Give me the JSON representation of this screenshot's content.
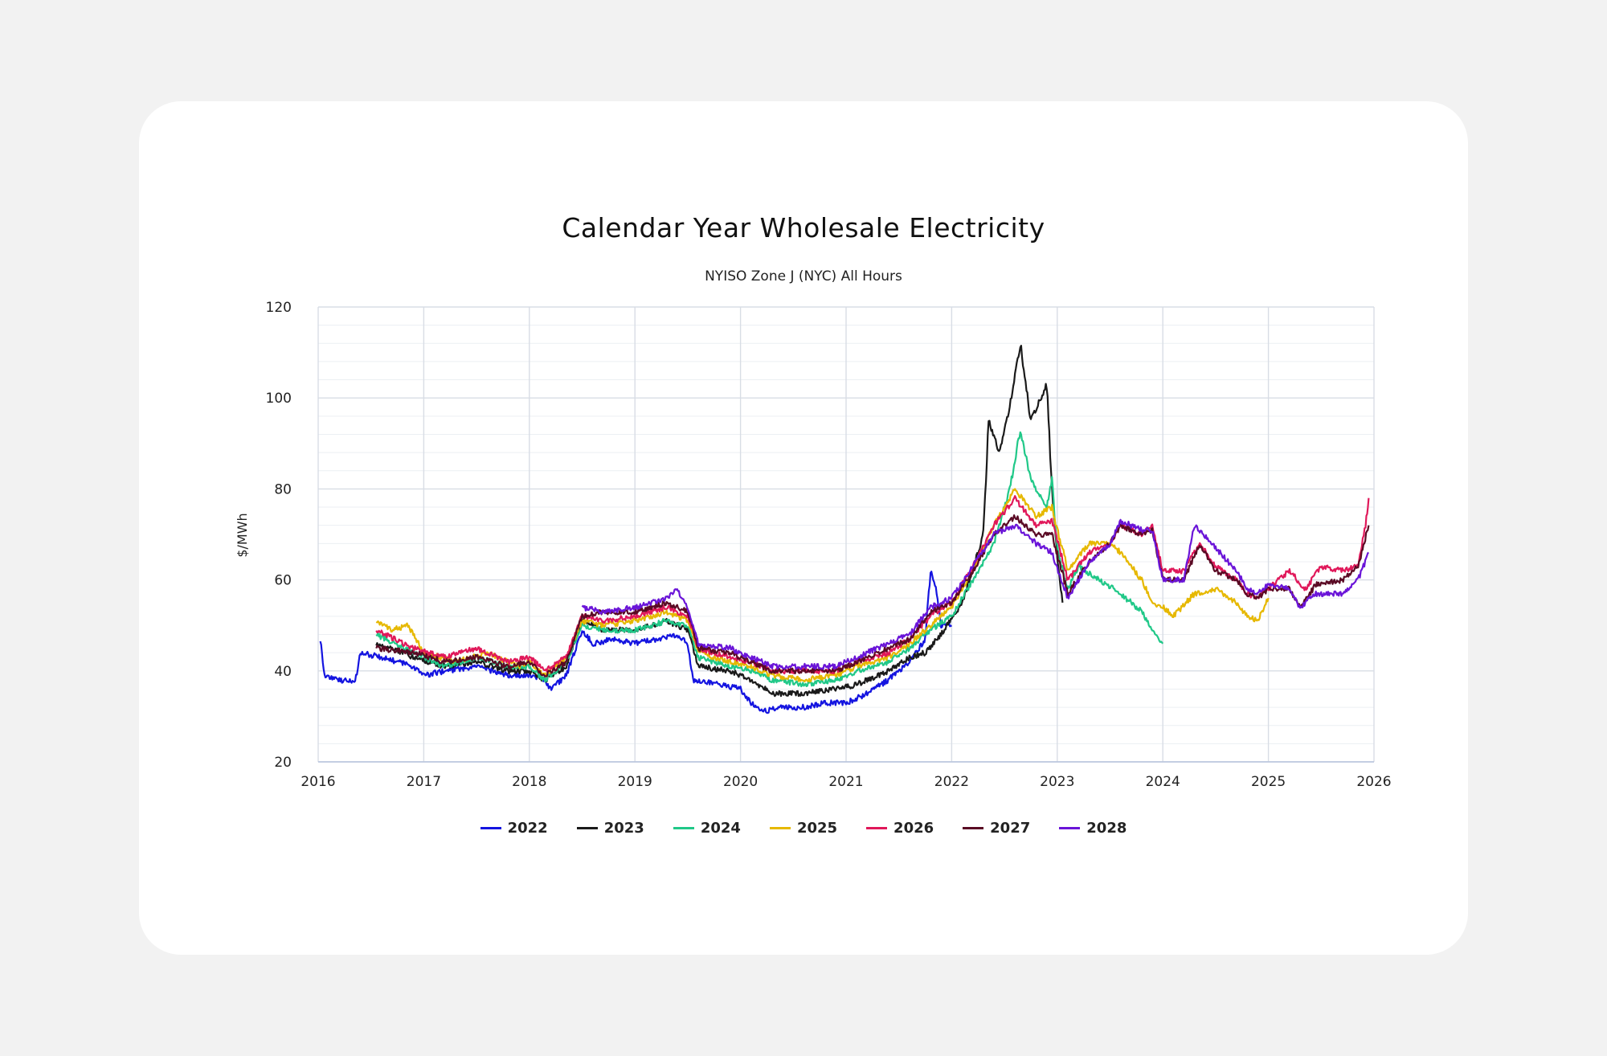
{
  "chart_data": {
    "type": "line",
    "title": "Calendar Year Wholesale Electricity",
    "subtitle": "NYISO Zone J (NYC) All Hours",
    "ylabel": "$/MWh",
    "xlabel": "",
    "xlim": [
      2016,
      2026
    ],
    "ylim": [
      20,
      120
    ],
    "xticks": [
      "2016",
      "2017",
      "2018",
      "2019",
      "2020",
      "2021",
      "2022",
      "2023",
      "2024",
      "2025",
      "2026"
    ],
    "yticks": [
      "20",
      "40",
      "60",
      "80",
      "100",
      "120"
    ],
    "legend_position": "bottom",
    "series": [
      {
        "name": "2022",
        "color": "#1414e0",
        "points": [
          [
            2016.02,
            47
          ],
          [
            2016.06,
            39
          ],
          [
            2016.2,
            38
          ],
          [
            2016.35,
            37.5
          ],
          [
            2016.4,
            44
          ],
          [
            2016.6,
            43
          ],
          [
            2016.9,
            41
          ],
          [
            2017.0,
            39
          ],
          [
            2017.2,
            40
          ],
          [
            2017.5,
            41
          ],
          [
            2017.8,
            39
          ],
          [
            2018.0,
            39
          ],
          [
            2018.15,
            38
          ],
          [
            2018.2,
            36
          ],
          [
            2018.35,
            39
          ],
          [
            2018.5,
            49
          ],
          [
            2018.6,
            46
          ],
          [
            2018.8,
            47
          ],
          [
            2019.0,
            46
          ],
          [
            2019.2,
            47
          ],
          [
            2019.4,
            48
          ],
          [
            2019.5,
            46
          ],
          [
            2019.55,
            38
          ],
          [
            2019.8,
            37
          ],
          [
            2020.0,
            36
          ],
          [
            2020.1,
            33
          ],
          [
            2020.2,
            31
          ],
          [
            2020.4,
            32
          ],
          [
            2020.6,
            32
          ],
          [
            2020.8,
            33
          ],
          [
            2021.0,
            33
          ],
          [
            2021.2,
            35
          ],
          [
            2021.4,
            38
          ],
          [
            2021.6,
            42
          ],
          [
            2021.75,
            47
          ],
          [
            2021.8,
            62
          ],
          [
            2021.85,
            58
          ],
          [
            2021.9,
            50
          ],
          [
            2022.0,
            50
          ]
        ]
      },
      {
        "name": "2023",
        "color": "#1a1a1a",
        "points": [
          [
            2016.55,
            46
          ],
          [
            2016.7,
            45
          ],
          [
            2016.9,
            43
          ],
          [
            2017.2,
            41
          ],
          [
            2017.5,
            42
          ],
          [
            2017.8,
            40
          ],
          [
            2018.0,
            40
          ],
          [
            2018.15,
            38
          ],
          [
            2018.35,
            41
          ],
          [
            2018.5,
            51
          ],
          [
            2018.7,
            49
          ],
          [
            2019.0,
            49
          ],
          [
            2019.3,
            51
          ],
          [
            2019.5,
            49
          ],
          [
            2019.6,
            41
          ],
          [
            2019.9,
            40
          ],
          [
            2020.1,
            38
          ],
          [
            2020.3,
            35
          ],
          [
            2020.6,
            35
          ],
          [
            2020.9,
            36
          ],
          [
            2021.1,
            37
          ],
          [
            2021.4,
            40
          ],
          [
            2021.6,
            43
          ],
          [
            2021.75,
            44
          ],
          [
            2021.9,
            48
          ],
          [
            2022.1,
            55
          ],
          [
            2022.3,
            70
          ],
          [
            2022.35,
            95
          ],
          [
            2022.45,
            88
          ],
          [
            2022.55,
            98
          ],
          [
            2022.65,
            112
          ],
          [
            2022.75,
            95
          ],
          [
            2022.9,
            103
          ],
          [
            2022.95,
            80
          ],
          [
            2023.0,
            65
          ],
          [
            2023.05,
            55
          ]
        ]
      },
      {
        "name": "2024",
        "color": "#20c888",
        "points": [
          [
            2016.55,
            48
          ],
          [
            2016.9,
            44
          ],
          [
            2017.2,
            41
          ],
          [
            2017.5,
            43
          ],
          [
            2017.8,
            41
          ],
          [
            2018.0,
            41
          ],
          [
            2018.15,
            38
          ],
          [
            2018.35,
            42
          ],
          [
            2018.5,
            50
          ],
          [
            2018.7,
            49
          ],
          [
            2019.0,
            49
          ],
          [
            2019.3,
            51
          ],
          [
            2019.5,
            50
          ],
          [
            2019.6,
            43
          ],
          [
            2019.9,
            41
          ],
          [
            2020.1,
            40
          ],
          [
            2020.3,
            38
          ],
          [
            2020.6,
            37
          ],
          [
            2020.9,
            38
          ],
          [
            2021.1,
            40
          ],
          [
            2021.4,
            42
          ],
          [
            2021.6,
            45
          ],
          [
            2021.8,
            49
          ],
          [
            2022.0,
            52
          ],
          [
            2022.2,
            60
          ],
          [
            2022.4,
            68
          ],
          [
            2022.55,
            80
          ],
          [
            2022.65,
            93
          ],
          [
            2022.75,
            82
          ],
          [
            2022.9,
            76
          ],
          [
            2022.95,
            82
          ],
          [
            2023.0,
            67
          ],
          [
            2023.1,
            58
          ],
          [
            2023.2,
            63
          ],
          [
            2023.4,
            60
          ],
          [
            2023.6,
            57
          ],
          [
            2023.8,
            53
          ],
          [
            2023.9,
            49
          ],
          [
            2024.0,
            46
          ]
        ]
      },
      {
        "name": "2025",
        "color": "#e6b800",
        "points": [
          [
            2016.55,
            51
          ],
          [
            2016.7,
            49
          ],
          [
            2016.85,
            50
          ],
          [
            2017.0,
            44
          ],
          [
            2017.3,
            42
          ],
          [
            2017.6,
            44
          ],
          [
            2017.9,
            41
          ],
          [
            2018.0,
            42
          ],
          [
            2018.15,
            39
          ],
          [
            2018.35,
            43
          ],
          [
            2018.5,
            51
          ],
          [
            2018.7,
            50
          ],
          [
            2019.0,
            51
          ],
          [
            2019.3,
            53
          ],
          [
            2019.5,
            51
          ],
          [
            2019.6,
            44
          ],
          [
            2019.9,
            42
          ],
          [
            2020.1,
            41
          ],
          [
            2020.3,
            39
          ],
          [
            2020.6,
            38
          ],
          [
            2020.9,
            39
          ],
          [
            2021.1,
            41
          ],
          [
            2021.4,
            43
          ],
          [
            2021.6,
            46
          ],
          [
            2021.8,
            50
          ],
          [
            2022.0,
            54
          ],
          [
            2022.2,
            62
          ],
          [
            2022.4,
            72
          ],
          [
            2022.6,
            80
          ],
          [
            2022.8,
            74
          ],
          [
            2022.95,
            76
          ],
          [
            2023.1,
            62
          ],
          [
            2023.3,
            68
          ],
          [
            2023.5,
            68
          ],
          [
            2023.6,
            66
          ],
          [
            2023.8,
            60
          ],
          [
            2023.9,
            55
          ],
          [
            2024.0,
            54
          ],
          [
            2024.1,
            52
          ],
          [
            2024.3,
            57
          ],
          [
            2024.5,
            58
          ],
          [
            2024.7,
            55
          ],
          [
            2024.8,
            52
          ],
          [
            2024.9,
            51
          ],
          [
            2025.0,
            56
          ]
        ]
      },
      {
        "name": "2026",
        "color": "#e0185a",
        "points": [
          [
            2016.55,
            49
          ],
          [
            2016.9,
            45
          ],
          [
            2017.2,
            43
          ],
          [
            2017.5,
            45
          ],
          [
            2017.8,
            42
          ],
          [
            2018.0,
            43
          ],
          [
            2018.15,
            40
          ],
          [
            2018.35,
            43
          ],
          [
            2018.5,
            52
          ],
          [
            2018.7,
            51
          ],
          [
            2019.0,
            52
          ],
          [
            2019.3,
            54
          ],
          [
            2019.5,
            52
          ],
          [
            2019.6,
            45
          ],
          [
            2019.9,
            43
          ],
          [
            2020.1,
            42
          ],
          [
            2020.3,
            40
          ],
          [
            2020.6,
            40
          ],
          [
            2020.9,
            40
          ],
          [
            2021.1,
            42
          ],
          [
            2021.4,
            44
          ],
          [
            2021.6,
            47
          ],
          [
            2021.8,
            52
          ],
          [
            2022.0,
            55
          ],
          [
            2022.2,
            63
          ],
          [
            2022.4,
            72
          ],
          [
            2022.6,
            78
          ],
          [
            2022.8,
            72
          ],
          [
            2022.95,
            73
          ],
          [
            2023.1,
            60
          ],
          [
            2023.3,
            66
          ],
          [
            2023.5,
            68
          ],
          [
            2023.6,
            72
          ],
          [
            2023.8,
            70
          ],
          [
            2023.9,
            72
          ],
          [
            2024.0,
            62
          ],
          [
            2024.2,
            62
          ],
          [
            2024.35,
            68
          ],
          [
            2024.5,
            63
          ],
          [
            2024.7,
            60
          ],
          [
            2024.8,
            57
          ],
          [
            2024.9,
            56
          ],
          [
            2025.0,
            58
          ],
          [
            2025.2,
            62
          ],
          [
            2025.35,
            58
          ],
          [
            2025.5,
            63
          ],
          [
            2025.7,
            62
          ],
          [
            2025.85,
            63
          ],
          [
            2025.92,
            72
          ],
          [
            2025.95,
            78
          ]
        ]
      },
      {
        "name": "2027",
        "color": "#5a0a24",
        "points": [
          [
            2016.55,
            45
          ],
          [
            2016.9,
            44
          ],
          [
            2017.2,
            42
          ],
          [
            2017.5,
            43
          ],
          [
            2017.8,
            41
          ],
          [
            2018.0,
            42
          ],
          [
            2018.15,
            39
          ],
          [
            2018.35,
            42
          ],
          [
            2018.5,
            52
          ],
          [
            2018.7,
            53
          ],
          [
            2019.0,
            53
          ],
          [
            2019.3,
            55
          ],
          [
            2019.5,
            53
          ],
          [
            2019.6,
            45
          ],
          [
            2019.9,
            44
          ],
          [
            2020.1,
            42
          ],
          [
            2020.3,
            40
          ],
          [
            2020.6,
            40
          ],
          [
            2020.9,
            40
          ],
          [
            2021.1,
            42
          ],
          [
            2021.4,
            45
          ],
          [
            2021.6,
            47
          ],
          [
            2021.8,
            53
          ],
          [
            2022.0,
            55
          ],
          [
            2022.2,
            62
          ],
          [
            2022.4,
            70
          ],
          [
            2022.6,
            74
          ],
          [
            2022.8,
            70
          ],
          [
            2022.95,
            70
          ],
          [
            2023.1,
            57
          ],
          [
            2023.3,
            64
          ],
          [
            2023.5,
            68
          ],
          [
            2023.6,
            72
          ],
          [
            2023.8,
            70
          ],
          [
            2023.9,
            71
          ],
          [
            2024.0,
            60
          ],
          [
            2024.2,
            60
          ],
          [
            2024.35,
            68
          ],
          [
            2024.5,
            62
          ],
          [
            2024.7,
            60
          ],
          [
            2024.8,
            57
          ],
          [
            2024.9,
            56
          ],
          [
            2025.0,
            58
          ],
          [
            2025.2,
            58
          ],
          [
            2025.3,
            54
          ],
          [
            2025.45,
            59
          ],
          [
            2025.7,
            60
          ],
          [
            2025.85,
            63
          ],
          [
            2025.95,
            72
          ]
        ]
      },
      {
        "name": "2028",
        "color": "#6a14d8",
        "points": [
          [
            2018.5,
            54
          ],
          [
            2018.7,
            53
          ],
          [
            2019.0,
            54
          ],
          [
            2019.3,
            56
          ],
          [
            2019.4,
            58
          ],
          [
            2019.5,
            54
          ],
          [
            2019.6,
            46
          ],
          [
            2019.9,
            45
          ],
          [
            2020.1,
            43
          ],
          [
            2020.3,
            41
          ],
          [
            2020.6,
            41
          ],
          [
            2020.9,
            41
          ],
          [
            2021.1,
            43
          ],
          [
            2021.4,
            46
          ],
          [
            2021.6,
            48
          ],
          [
            2021.8,
            54
          ],
          [
            2022.0,
            56
          ],
          [
            2022.2,
            63
          ],
          [
            2022.4,
            70
          ],
          [
            2022.6,
            72
          ],
          [
            2022.8,
            68
          ],
          [
            2022.95,
            66
          ],
          [
            2023.1,
            56
          ],
          [
            2023.3,
            64
          ],
          [
            2023.5,
            68
          ],
          [
            2023.6,
            73
          ],
          [
            2023.8,
            71
          ],
          [
            2023.9,
            71
          ],
          [
            2024.0,
            60
          ],
          [
            2024.2,
            60
          ],
          [
            2024.3,
            72
          ],
          [
            2024.5,
            67
          ],
          [
            2024.7,
            62
          ],
          [
            2024.8,
            58
          ],
          [
            2024.9,
            57
          ],
          [
            2025.0,
            59
          ],
          [
            2025.2,
            58
          ],
          [
            2025.3,
            54
          ],
          [
            2025.45,
            57
          ],
          [
            2025.7,
            57
          ],
          [
            2025.85,
            60
          ],
          [
            2025.95,
            66
          ]
        ]
      }
    ]
  }
}
